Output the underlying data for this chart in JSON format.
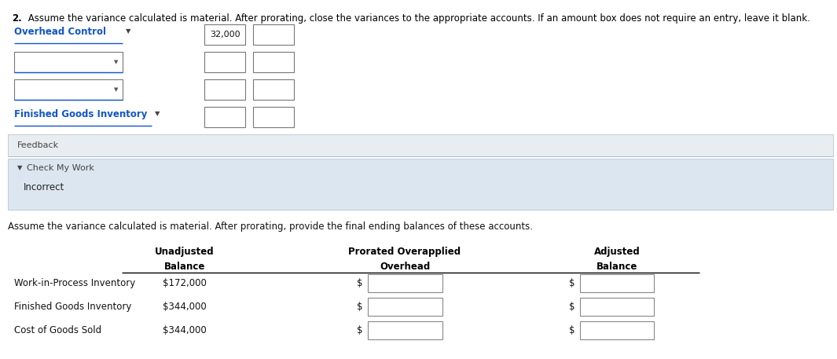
{
  "title_bold": "2.",
  "title_rest": " Assume the variance calculated is material. After prorating, close the variances to the appropriate accounts. If an amount box does not require an entry, leave it blank.",
  "section1": {
    "row1_label": "Overhead Control",
    "row1_value": "32,000",
    "last_label": "Finished Goods Inventory",
    "label_color": "#1155cc",
    "underline_color": "#1155cc"
  },
  "feedback_section": {
    "feedback_label": "Feedback",
    "check_label": "Check My Work",
    "incorrect_label": "Incorrect",
    "bg_color": "#dce6f0",
    "divider_color": "#aabbcc"
  },
  "section2": {
    "intro_text": "Assume the variance calculated is material. After prorating, provide the final ending balances of these accounts.",
    "col_header_line1": [
      "Unadjusted",
      "Prorated Overapplied",
      "Adjusted"
    ],
    "col_header_line2": [
      "Balance",
      "Overhead",
      "Balance"
    ],
    "rows": [
      {
        "label": "Work-in-Process Inventory",
        "unadj": "$172,000"
      },
      {
        "label": "Finished Goods Inventory",
        "unadj": "$344,000"
      },
      {
        "label": "Cost of Goods Sold",
        "unadj": "$344,000"
      }
    ]
  },
  "fig_width": 10.65,
  "fig_height": 4.57,
  "dpi": 100,
  "bg_color": "#ffffff",
  "font_size": 8.5
}
